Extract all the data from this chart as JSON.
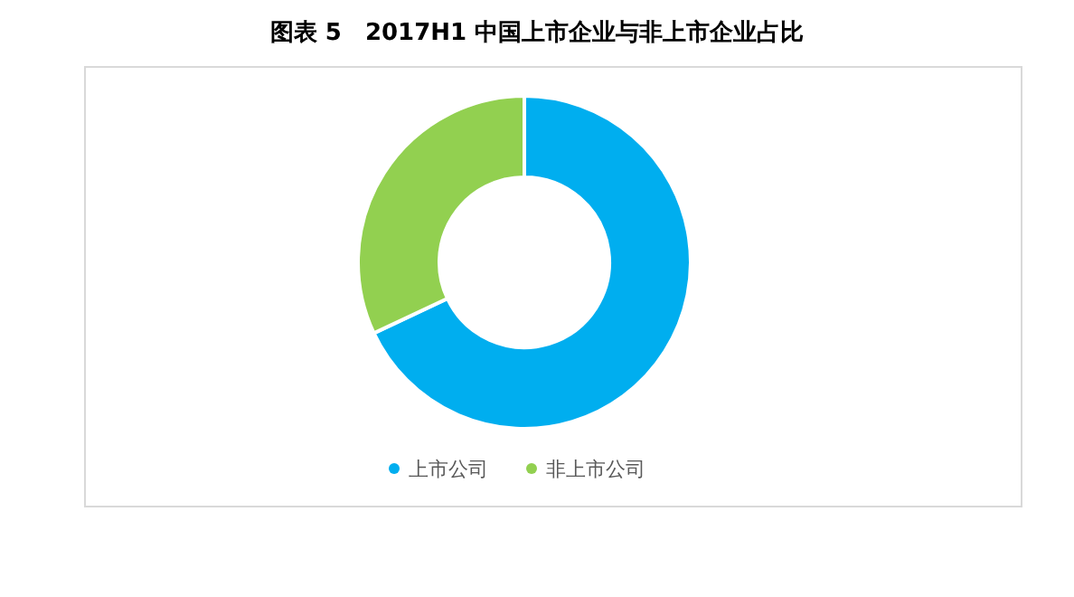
{
  "chart_data": {
    "type": "donut",
    "title": "图表 5　2017H1 中国上市企业与非上市企业占比",
    "categories": [
      "上市公司",
      "非上市公司"
    ],
    "values": [
      68,
      32
    ],
    "colors": [
      "#00aeef",
      "#92d050"
    ],
    "legend": "bottom"
  }
}
